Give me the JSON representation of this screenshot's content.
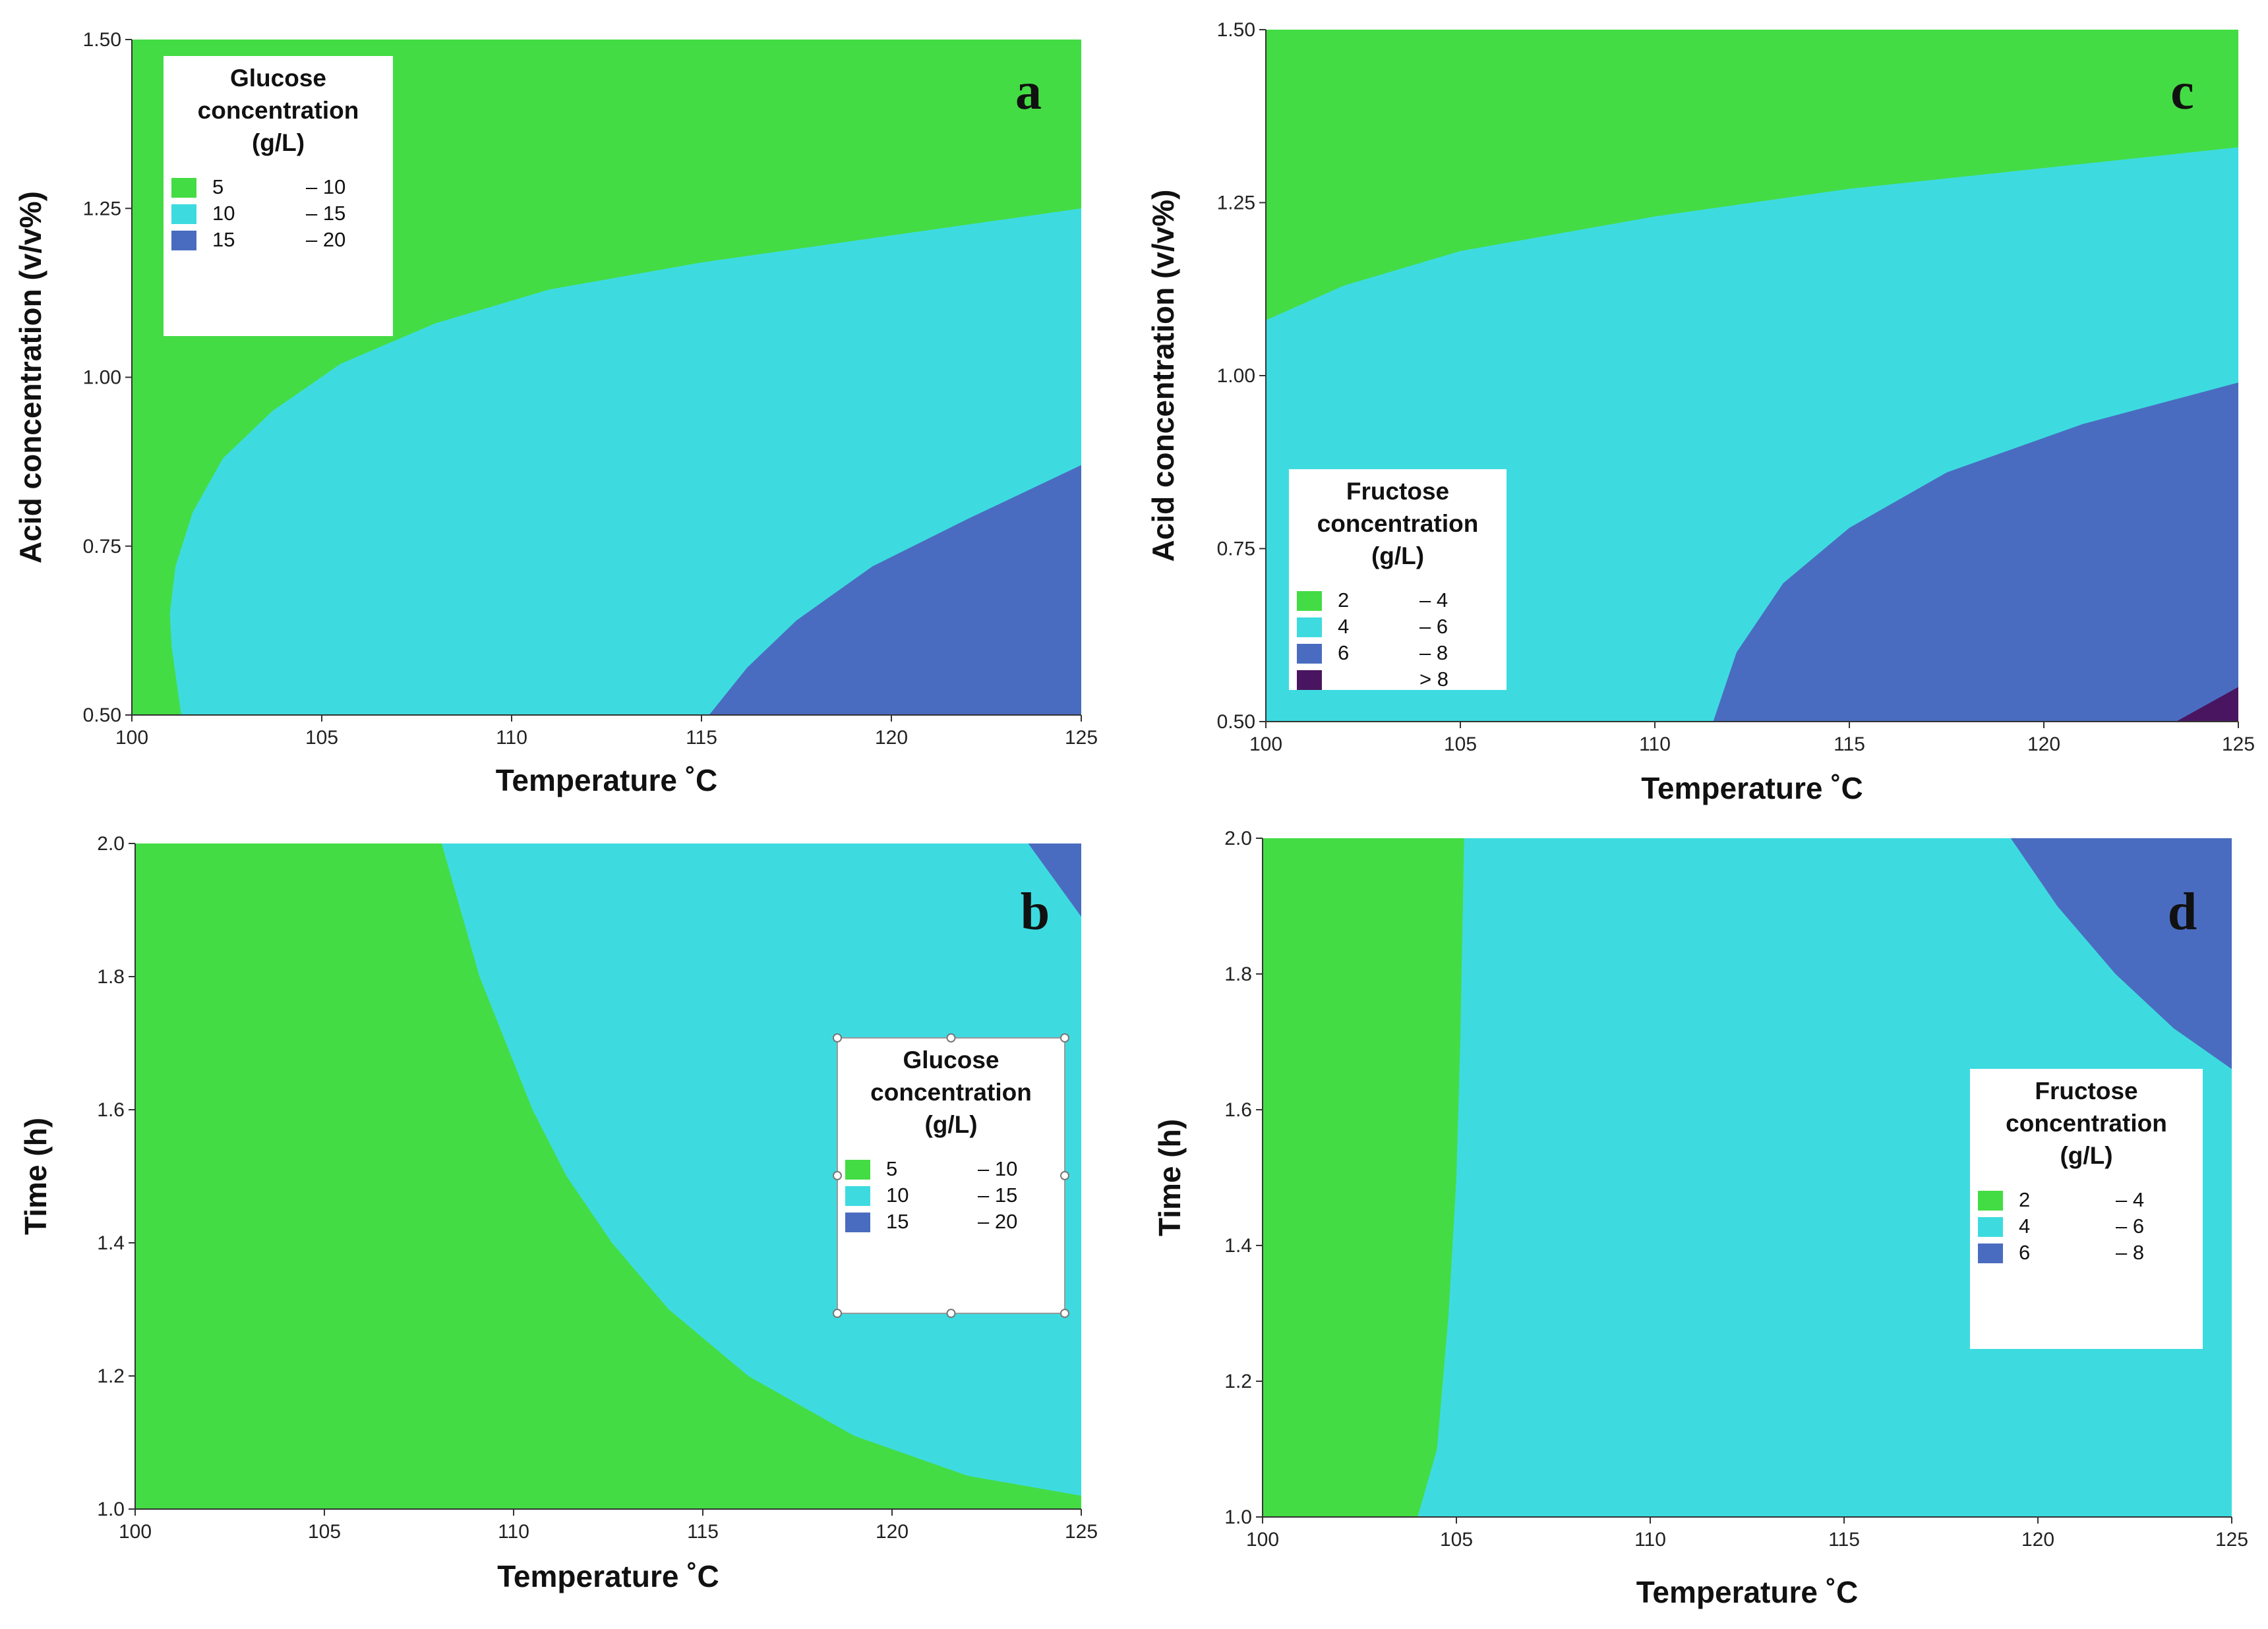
{
  "colors": {
    "green": "#44dc44",
    "cyan": "#3ddbe0",
    "blue": "#4a6cc0",
    "purple": "#4a1560"
  },
  "chart_data": [
    {
      "id": "a",
      "type": "contour",
      "panel_letter": "a",
      "xlabel": "Temperature ˚C",
      "ylabel": "Acid concentration (v/v%)",
      "xlim": [
        100,
        125
      ],
      "ylim": [
        0.5,
        1.5
      ],
      "xticks": [
        100,
        105,
        110,
        115,
        120,
        125
      ],
      "yticks": [
        0.5,
        0.75,
        1.0,
        1.25,
        1.5
      ],
      "xtick_labels": [
        "100",
        "105",
        "110",
        "115",
        "120",
        "125"
      ],
      "ytick_labels": [
        "0.50",
        "0.75",
        "1.00",
        "1.25",
        "1.50"
      ],
      "legend": {
        "title": [
          "Glucose",
          "concentration",
          "(g/L)"
        ],
        "placement": "top-left",
        "entries": [
          {
            "color": "green",
            "low": "5",
            "high": "– 10"
          },
          {
            "color": "cyan",
            "low": "10",
            "high": "– 15"
          },
          {
            "color": "blue",
            "low": "15",
            "high": "– 20"
          }
        ]
      },
      "background": "green",
      "regions": [
        {
          "name": "10 – 15",
          "color": "cyan",
          "points": [
            [
              101.3,
              0.5
            ],
            [
              101.05,
              0.6
            ],
            [
              101.0,
              0.65
            ],
            [
              101.15,
              0.72
            ],
            [
              101.6,
              0.8
            ],
            [
              102.4,
              0.88
            ],
            [
              103.7,
              0.95
            ],
            [
              105.5,
              1.02
            ],
            [
              108,
              1.08
            ],
            [
              111,
              1.13
            ],
            [
              115,
              1.17
            ],
            [
              120,
              1.21
            ],
            [
              125,
              1.25
            ],
            [
              125,
              0.5
            ]
          ]
        },
        {
          "name": "15 – 20",
          "color": "blue",
          "points": [
            [
              115.2,
              0.5
            ],
            [
              116.2,
              0.57
            ],
            [
              117.5,
              0.64
            ],
            [
              119.5,
              0.72
            ],
            [
              122,
              0.79
            ],
            [
              125,
              0.87
            ],
            [
              125,
              0.5
            ]
          ]
        }
      ]
    },
    {
      "id": "b",
      "type": "contour",
      "panel_letter": "b",
      "xlabel": "Temperature ˚C",
      "ylabel": "Time (h)",
      "xlim": [
        100,
        125
      ],
      "ylim": [
        1.0,
        2.0
      ],
      "xticks": [
        100,
        105,
        110,
        115,
        120,
        125
      ],
      "yticks": [
        1.0,
        1.2,
        1.4,
        1.6,
        1.8,
        2.0
      ],
      "xtick_labels": [
        "100",
        "105",
        "110",
        "115",
        "120",
        "125"
      ],
      "ytick_labels": [
        "1.0",
        "1.2",
        "1.4",
        "1.6",
        "1.8",
        "2.0"
      ],
      "legend": {
        "title": [
          "Glucose",
          "concentration",
          "(g/L)"
        ],
        "placement": "right",
        "entries": [
          {
            "color": "green",
            "low": "5",
            "high": "– 10"
          },
          {
            "color": "cyan",
            "low": "10",
            "high": "– 15"
          },
          {
            "color": "blue",
            "low": "15",
            "high": "– 20"
          }
        ]
      },
      "background": "green",
      "regions": [
        {
          "name": "10 – 15",
          "color": "cyan",
          "points": [
            [
              108.1,
              2.0
            ],
            [
              108.6,
              1.9
            ],
            [
              109.1,
              1.8
            ],
            [
              109.8,
              1.7
            ],
            [
              110.5,
              1.6
            ],
            [
              111.4,
              1.5
            ],
            [
              112.6,
              1.4
            ],
            [
              114.1,
              1.3
            ],
            [
              116.2,
              1.2
            ],
            [
              119,
              1.11
            ],
            [
              122,
              1.05
            ],
            [
              125,
              1.02
            ],
            [
              125,
              2.0
            ]
          ]
        },
        {
          "name": "15 – 20",
          "color": "blue",
          "points": [
            [
              123.6,
              2.0
            ],
            [
              125,
              1.89
            ],
            [
              125,
              2.0
            ]
          ]
        }
      ]
    },
    {
      "id": "c",
      "type": "contour",
      "panel_letter": "c",
      "xlabel": "Temperature ˚C",
      "ylabel": "Acid concentration (v/v%)",
      "xlim": [
        100,
        125
      ],
      "ylim": [
        0.5,
        1.5
      ],
      "xticks": [
        100,
        105,
        110,
        115,
        120,
        125
      ],
      "yticks": [
        0.5,
        0.75,
        1.0,
        1.25,
        1.5
      ],
      "xtick_labels": [
        "100",
        "105",
        "110",
        "115",
        "120",
        "125"
      ],
      "ytick_labels": [
        "0.50",
        "0.75",
        "1.00",
        "1.25",
        "1.50"
      ],
      "legend": {
        "title": [
          "Fructose",
          "concentration",
          "(g/L)"
        ],
        "placement": "bottom-left",
        "entries": [
          {
            "color": "green",
            "low": "2",
            "high": "– 4"
          },
          {
            "color": "cyan",
            "low": "4",
            "high": "– 6"
          },
          {
            "color": "blue",
            "low": "6",
            "high": "– 8"
          },
          {
            "color": "purple",
            "low": "",
            "high": "> 8"
          }
        ]
      },
      "background": "green",
      "regions": [
        {
          "name": "4 – 6",
          "color": "cyan",
          "points": [
            [
              100,
              1.08
            ],
            [
              102,
              1.13
            ],
            [
              105,
              1.18
            ],
            [
              110,
              1.23
            ],
            [
              115,
              1.27
            ],
            [
              120,
              1.3
            ],
            [
              125,
              1.33
            ],
            [
              125,
              0.5
            ],
            [
              100,
              0.5
            ]
          ]
        },
        {
          "name": "6 – 8",
          "color": "blue",
          "points": [
            [
              111.5,
              0.5
            ],
            [
              112.1,
              0.6
            ],
            [
              113.3,
              0.7
            ],
            [
              115,
              0.78
            ],
            [
              117.5,
              0.86
            ],
            [
              121,
              0.93
            ],
            [
              125,
              0.99
            ],
            [
              125,
              0.5
            ]
          ]
        },
        {
          "name": "> 8",
          "color": "purple",
          "points": [
            [
              123.4,
              0.5
            ],
            [
              125,
              0.55
            ],
            [
              125,
              0.5
            ]
          ]
        }
      ]
    },
    {
      "id": "d",
      "type": "contour",
      "panel_letter": "d",
      "xlabel": "Temperature ˚C",
      "ylabel": "Time (h)",
      "xlim": [
        100,
        125
      ],
      "ylim": [
        1.0,
        2.0
      ],
      "xticks": [
        100,
        105,
        110,
        115,
        120,
        125
      ],
      "yticks": [
        1.0,
        1.2,
        1.4,
        1.6,
        1.8,
        2.0
      ],
      "xtick_labels": [
        "100",
        "105",
        "110",
        "115",
        "120",
        "125"
      ],
      "ytick_labels": [
        "1.0",
        "1.2",
        "1.4",
        "1.6",
        "1.8",
        "2.0"
      ],
      "legend": {
        "title": [
          "Fructose",
          "concentration",
          "(g/L)"
        ],
        "placement": "right",
        "entries": [
          {
            "color": "green",
            "low": "2",
            "high": "– 4"
          },
          {
            "color": "cyan",
            "low": "4",
            "high": "– 6"
          },
          {
            "color": "blue",
            "low": "6",
            "high": "– 8"
          }
        ]
      },
      "background": "green",
      "regions": [
        {
          "name": "4 – 6",
          "color": "cyan",
          "points": [
            [
              104.0,
              1.0
            ],
            [
              104.5,
              1.1
            ],
            [
              104.8,
              1.3
            ],
            [
              105.0,
              1.5
            ],
            [
              105.1,
              1.7
            ],
            [
              105.2,
              2.0
            ],
            [
              125,
              2.0
            ],
            [
              125,
              1.0
            ]
          ]
        },
        {
          "name": "6 – 8",
          "color": "blue",
          "points": [
            [
              119.3,
              2.0
            ],
            [
              120.5,
              1.9
            ],
            [
              122,
              1.8
            ],
            [
              123.5,
              1.72
            ],
            [
              125,
              1.66
            ],
            [
              125,
              2.0
            ]
          ]
        }
      ]
    }
  ]
}
